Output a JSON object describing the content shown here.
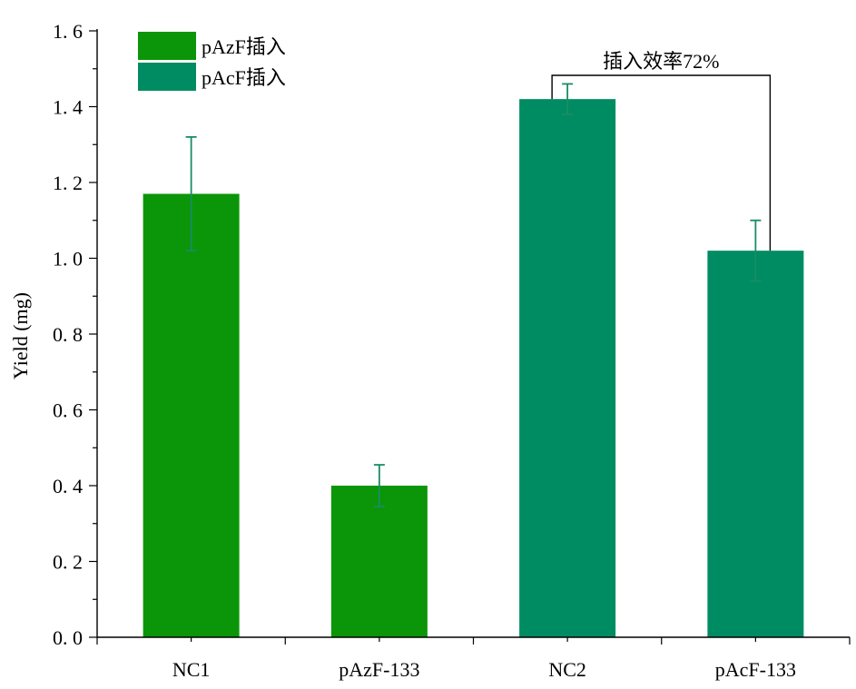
{
  "chart_data": {
    "type": "bar",
    "categories": [
      "NC1",
      "pAzF-133",
      "NC2",
      "pAcF-133"
    ],
    "values": [
      1.17,
      0.4,
      1.42,
      1.02
    ],
    "errors": [
      0.15,
      0.055,
      0.04,
      0.08
    ],
    "bar_series": [
      "pAzF插入",
      "pAzF插入",
      "pAcF插入",
      "pAcF插入"
    ],
    "ylabel": "Yield (mg)",
    "xlabel": "",
    "ylim": [
      0,
      1.6
    ],
    "yticks": [
      "0. 0",
      "0. 2",
      "0. 4",
      "0. 6",
      "0. 8",
      "1. 0",
      "1. 2",
      "1. 4",
      "1. 6"
    ],
    "yticks_values": [
      0,
      0.2,
      0.4,
      0.6,
      0.8,
      1.0,
      1.2,
      1.4,
      1.6
    ],
    "grid": false,
    "legend": {
      "placement": "top-left",
      "entries": [
        {
          "name": "pAzF插入",
          "color": "#0a9608"
        },
        {
          "name": "pAcF插入",
          "color": "#008c62"
        }
      ]
    },
    "annotation": {
      "text": "插入效率72%",
      "from_category": "NC2",
      "to_category": "pAcF-133"
    },
    "colors": {
      "pAzF插入": "#0a9608",
      "pAcF插入": "#008c62",
      "error_bar": "#1a8c64"
    }
  }
}
